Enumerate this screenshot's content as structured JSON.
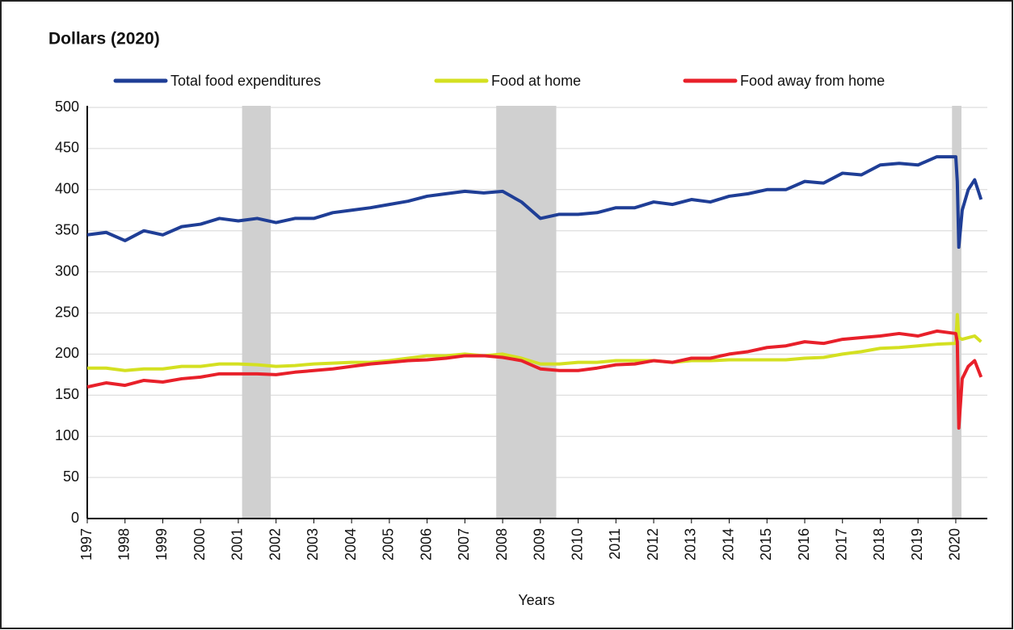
{
  "chart_data": {
    "type": "line",
    "y_axis_title": "Dollars (2020)",
    "x_axis_title": "Years",
    "x": [
      1997,
      1997.5,
      1998,
      1998.5,
      1999,
      1999.5,
      2000,
      2000.5,
      2001,
      2001.5,
      2002,
      2002.5,
      2003,
      2003.5,
      2004,
      2004.5,
      2005,
      2005.5,
      2006,
      2006.5,
      2007,
      2007.5,
      2008,
      2008.5,
      2009,
      2009.5,
      2010,
      2010.5,
      2011,
      2011.5,
      2012,
      2012.5,
      2013,
      2013.5,
      2014,
      2014.5,
      2015,
      2015.5,
      2016,
      2016.5,
      2017,
      2017.5,
      2018,
      2018.5,
      2019,
      2019.5,
      2020,
      2020.04,
      2020.08,
      2020.17,
      2020.33,
      2020.5,
      2020.67
    ],
    "series": [
      {
        "name": "Total food expenditures",
        "color": "#1f3e96",
        "values": [
          345,
          348,
          338,
          350,
          345,
          355,
          358,
          365,
          362,
          365,
          360,
          365,
          365,
          372,
          375,
          378,
          382,
          386,
          392,
          395,
          398,
          396,
          398,
          385,
          365,
          370,
          370,
          372,
          378,
          378,
          385,
          382,
          388,
          385,
          392,
          395,
          400,
          400,
          410,
          408,
          420,
          418,
          430,
          432,
          430,
          440,
          440,
          410,
          330,
          375,
          400,
          412,
          388
        ]
      },
      {
        "name": "Food at home",
        "color": "#d4e021",
        "values": [
          183,
          183,
          180,
          182,
          182,
          185,
          185,
          188,
          188,
          187,
          185,
          186,
          188,
          189,
          190,
          190,
          192,
          195,
          198,
          198,
          200,
          198,
          200,
          195,
          188,
          188,
          190,
          190,
          192,
          192,
          192,
          190,
          192,
          192,
          193,
          193,
          193,
          193,
          195,
          196,
          200,
          203,
          207,
          208,
          210,
          212,
          213,
          248,
          220,
          218,
          220,
          222,
          215
        ]
      },
      {
        "name": "Food away from home",
        "color": "#e8202a",
        "values": [
          160,
          165,
          162,
          168,
          166,
          170,
          172,
          176,
          176,
          176,
          175,
          178,
          180,
          182,
          185,
          188,
          190,
          192,
          193,
          195,
          198,
          198,
          196,
          192,
          182,
          180,
          180,
          183,
          187,
          188,
          192,
          190,
          195,
          195,
          200,
          203,
          208,
          210,
          215,
          213,
          218,
          220,
          222,
          225,
          222,
          228,
          225,
          215,
          110,
          170,
          185,
          192,
          172
        ]
      }
    ],
    "recessions": [
      {
        "start": 2001.1,
        "end": 2001.86
      },
      {
        "start": 2007.83,
        "end": 2009.42
      },
      {
        "start": 2019.9,
        "end": 2020.15
      }
    ],
    "recession_color": "#d0d0d0",
    "xlim": [
      1997,
      2020.75
    ],
    "xticks": [
      1997,
      1998,
      1999,
      2000,
      2001,
      2002,
      2003,
      2004,
      2005,
      2006,
      2007,
      2008,
      2009,
      2010,
      2011,
      2012,
      2013,
      2014,
      2015,
      2016,
      2017,
      2018,
      2019,
      2020
    ],
    "ylim": [
      0,
      500
    ],
    "yticks": [
      0,
      50,
      100,
      150,
      200,
      250,
      300,
      350,
      400,
      450,
      500
    ],
    "grid": true
  }
}
